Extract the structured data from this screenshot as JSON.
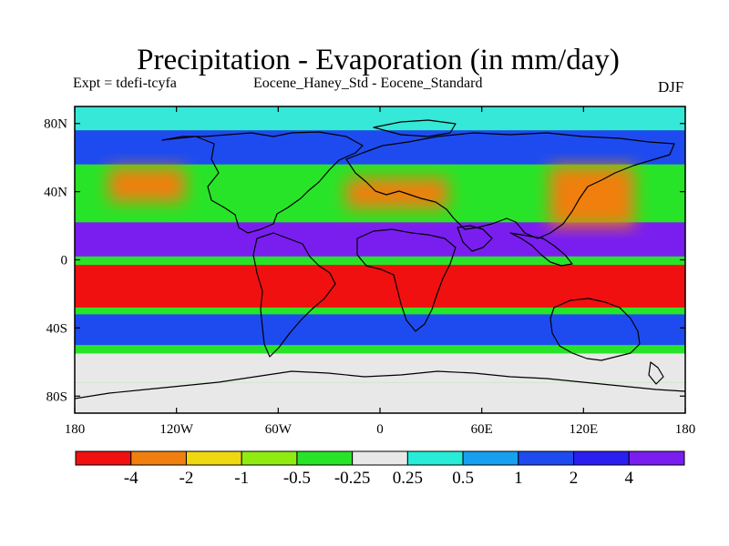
{
  "figure": {
    "title": "Precipitation - Evaporation (in mm/day)",
    "subtitle_left": "Expt = tdefi-tcyfa",
    "subtitle_center": "Eocene_Haney_Std - Eocene_Standard",
    "subtitle_right": "DJF"
  },
  "map": {
    "projection": "cylindrical-equidistant",
    "lon_range": [
      -180,
      180
    ],
    "lat_range": [
      -90,
      90
    ],
    "lat_ticks": [
      {
        "value": 80,
        "label": "80N"
      },
      {
        "value": 40,
        "label": "40N"
      },
      {
        "value": 0,
        "label": "0"
      },
      {
        "value": -40,
        "label": "40S"
      },
      {
        "value": -80,
        "label": "80S"
      }
    ],
    "lon_ticks": [
      {
        "value": -180,
        "label": "180"
      },
      {
        "value": -120,
        "label": "120W"
      },
      {
        "value": -60,
        "label": "60W"
      },
      {
        "value": 0,
        "label": "0"
      },
      {
        "value": 60,
        "label": "60E"
      },
      {
        "value": 120,
        "label": "120E"
      },
      {
        "value": 180,
        "label": "180"
      }
    ],
    "field_regions": [
      {
        "name": "arctic-band",
        "lat": [
          76,
          90
        ],
        "lon": [
          -180,
          180
        ],
        "color": "#35e8d8"
      },
      {
        "name": "north-midlat-blue-band",
        "lat": [
          56,
          76
        ],
        "lon": [
          -180,
          180
        ],
        "color": "#1e4bf0"
      },
      {
        "name": "north-pacific-dry-core",
        "lat": [
          34,
          54
        ],
        "lon": [
          -160,
          -115
        ],
        "color": "#f07f10"
      },
      {
        "name": "north-atlantic-dry",
        "lat": [
          30,
          48
        ],
        "lon": [
          -20,
          40
        ],
        "color": "#f07f10"
      },
      {
        "name": "west-pacific-dry-arm",
        "lat": [
          20,
          55
        ],
        "lon": [
          100,
          150
        ],
        "color": "#f07f10"
      },
      {
        "name": "subtropical-wet-band",
        "lat": [
          2,
          22
        ],
        "lon": [
          -180,
          180
        ],
        "color": "#7a1ef0"
      },
      {
        "name": "equatorial-south-dry-band",
        "lat": [
          -28,
          -3
        ],
        "lon": [
          -180,
          180
        ],
        "color": "#f01010"
      },
      {
        "name": "southern-wet-band",
        "lat": [
          -50,
          -32
        ],
        "lon": [
          -180,
          180
        ],
        "color": "#1e4bf0"
      },
      {
        "name": "southern-neutral-band",
        "lat": [
          -72,
          -55
        ],
        "lon": [
          -180,
          180
        ],
        "color": "#e8e8e8"
      },
      {
        "name": "antarctic-band",
        "lat": [
          -90,
          -72
        ],
        "lon": [
          -180,
          180
        ],
        "color": "#e8e8e8"
      }
    ]
  },
  "colorbar": {
    "colors": [
      "#f01010",
      "#f07f10",
      "#f0d810",
      "#90ec10",
      "#28e428",
      "#e8e8e8",
      "#28ecd8",
      "#18a0f0",
      "#1e4bf0",
      "#2a1ef0",
      "#7a1ef0"
    ],
    "labels": [
      "-4",
      "-2",
      "-1",
      "-0.5",
      "-0.25",
      "0.25",
      "0.5",
      "1",
      "2",
      "4"
    ]
  }
}
